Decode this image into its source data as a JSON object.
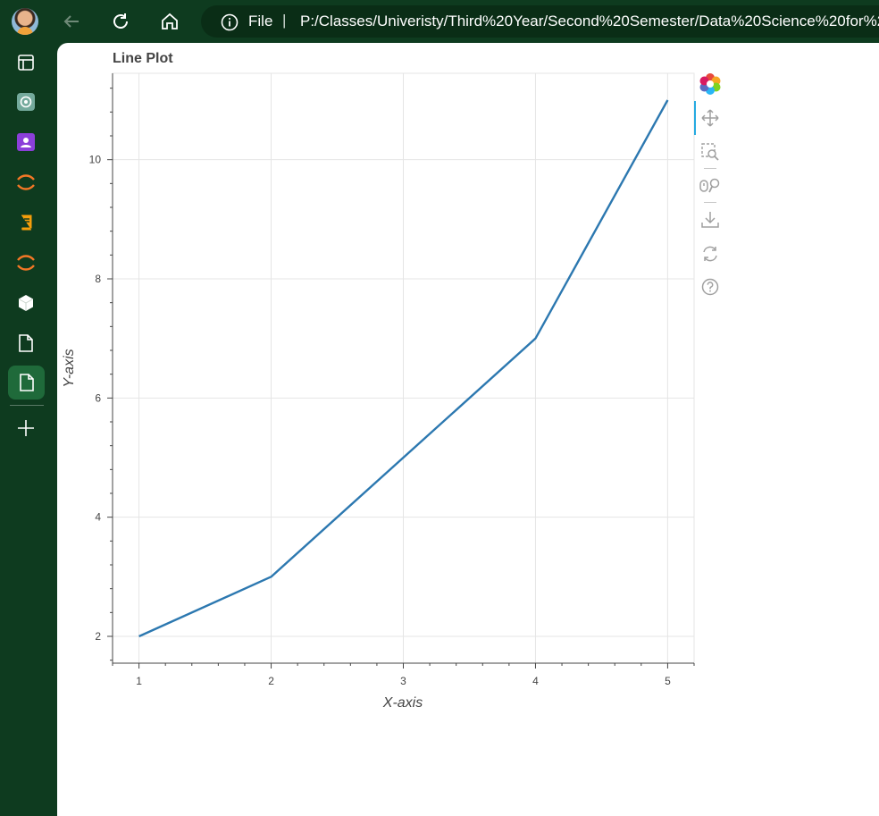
{
  "browser": {
    "address_label": "File",
    "separator": "|",
    "url": "P:/Classes/Univeristy/Third%20Year/Second%20Semester/Data%20Science%20for%2"
  },
  "sidebar": {
    "items": [
      "layout-icon",
      "chatgpt-icon",
      "contact-icon",
      "arc-icon",
      "book-icon",
      "arc-icon",
      "cube-icon",
      "document-icon",
      "document-icon",
      "plus-icon"
    ]
  },
  "toolbar": {
    "tools": [
      "bokeh-logo",
      "pan-icon",
      "box-zoom-icon",
      "wheel-zoom-icon",
      "save-icon",
      "reset-icon",
      "help-icon"
    ]
  },
  "colors": {
    "line": "#2c78b0",
    "sidebar_bg": "#0e3b1f",
    "grid": "#e5e5e5"
  },
  "chart_data": {
    "type": "line",
    "title": "Line Plot",
    "xlabel": "X-axis",
    "ylabel": "Y-axis",
    "x": [
      1,
      2,
      3,
      4,
      5
    ],
    "series": [
      {
        "values": [
          2,
          3,
          5,
          7,
          11
        ]
      }
    ],
    "xticks": [
      "1",
      "2",
      "3",
      "4",
      "5"
    ],
    "yticks": [
      "2",
      "4",
      "6",
      "8",
      "10"
    ],
    "xlim": [
      0.8,
      5.2
    ],
    "ylim": [
      1.55,
      11.45
    ],
    "grid": true,
    "legend": "none"
  }
}
